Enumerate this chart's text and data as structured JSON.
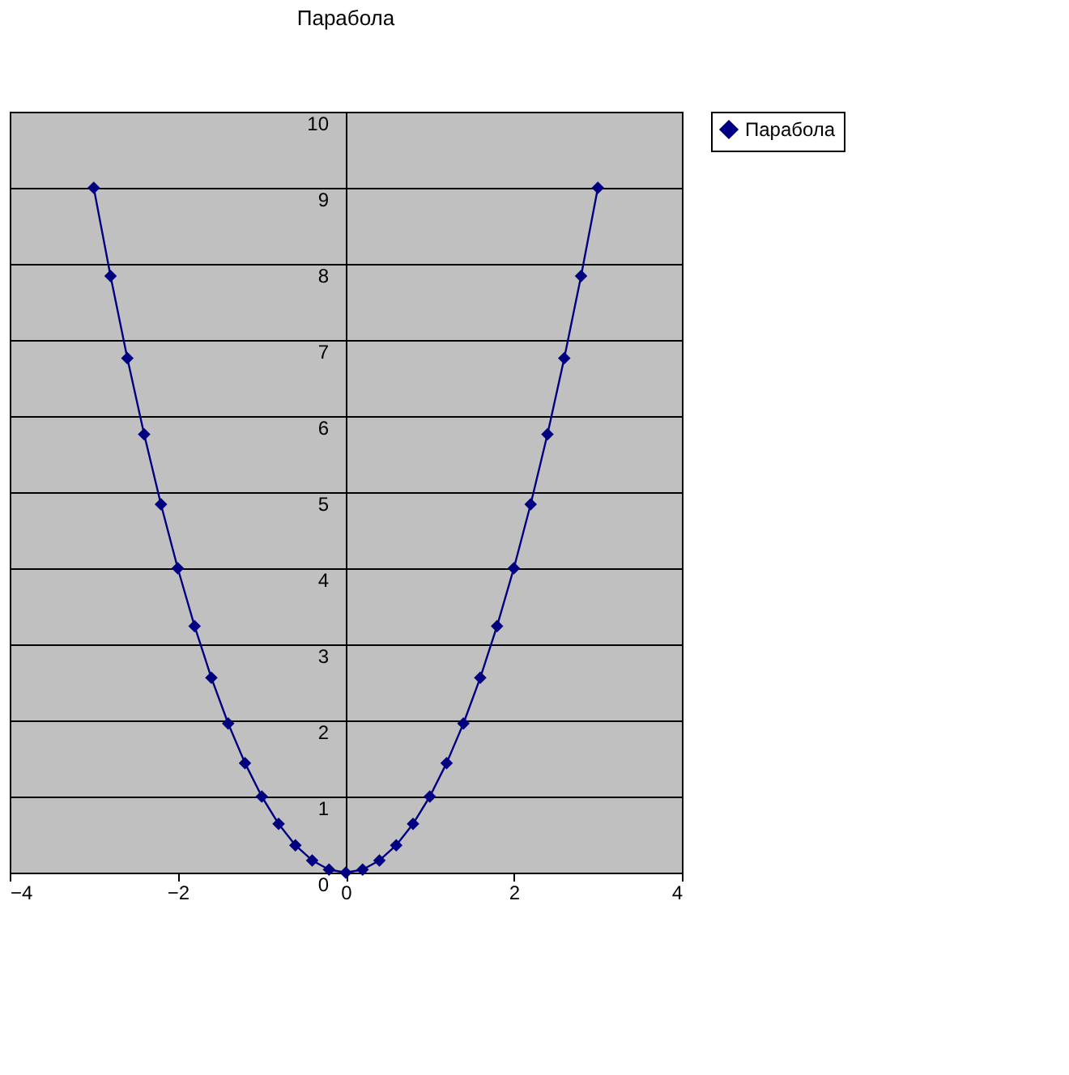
{
  "chart_data": {
    "type": "line",
    "title": "Парабола",
    "x": [
      -3,
      -2.8,
      -2.6,
      -2.4,
      -2.2,
      -2,
      -1.8,
      -1.6,
      -1.4,
      -1.2,
      -1,
      -0.8,
      -0.6,
      -0.4,
      -0.2,
      0,
      0.2,
      0.4,
      0.6,
      0.8,
      1,
      1.2,
      1.4,
      1.6,
      1.8,
      2,
      2.2,
      2.4,
      2.6,
      2.8,
      3
    ],
    "series": [
      {
        "name": "Парабола",
        "color": "#000080",
        "values": [
          9,
          7.84,
          6.76,
          5.76,
          4.84,
          4,
          3.24,
          2.56,
          1.96,
          1.44,
          1,
          0.64,
          0.36,
          0.16,
          0.04,
          0,
          0.04,
          0.16,
          0.36,
          0.64,
          1,
          1.44,
          1.96,
          2.56,
          3.24,
          4,
          4.84,
          5.76,
          6.76,
          7.84,
          9
        ]
      }
    ],
    "xlim": [
      -4,
      4
    ],
    "xticks": [
      -4,
      -2,
      0,
      2,
      4
    ],
    "ylim": [
      0,
      10
    ],
    "yticks": [
      0,
      1,
      2,
      3,
      4,
      5,
      6,
      7,
      8,
      9,
      10
    ],
    "grid": "y",
    "legend": "right",
    "marker": "diamond",
    "line_style": "solid"
  }
}
